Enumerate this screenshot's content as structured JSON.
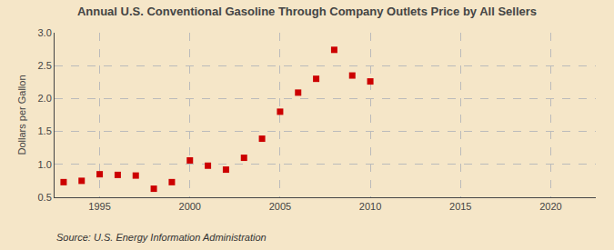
{
  "chart_data": {
    "type": "scatter",
    "title": "Annual U.S. Conventional Gasoline Through Company Outlets Price by All Sellers",
    "ylabel": "Dollars per Gallon",
    "annotations": [
      "Source: U.S. Energy Information Administration"
    ],
    "x": [
      1993,
      1994,
      1995,
      1996,
      1997,
      1998,
      1999,
      2000,
      2001,
      2002,
      2003,
      2004,
      2005,
      2006,
      2007,
      2008,
      2009,
      2010
    ],
    "values": [
      0.73,
      0.75,
      0.85,
      0.84,
      0.83,
      0.63,
      0.73,
      1.06,
      0.98,
      0.92,
      1.1,
      1.39,
      1.8,
      2.09,
      2.3,
      2.74,
      2.35,
      2.26
    ],
    "color": "#cc0000",
    "marker": "square",
    "grid": true,
    "xlim": [
      1992.5,
      2022.5
    ],
    "ylim": [
      0.5,
      3.0
    ],
    "xticks": [
      1995,
      2000,
      2005,
      2010,
      2015,
      2020
    ],
    "yticks": [
      0.5,
      {
        "value": 1.0,
        "label": "1.0"
      },
      1.5,
      {
        "value": 2.0,
        "label": "2.0"
      },
      2.5,
      {
        "value": 3.0,
        "label": "3.0"
      }
    ]
  }
}
